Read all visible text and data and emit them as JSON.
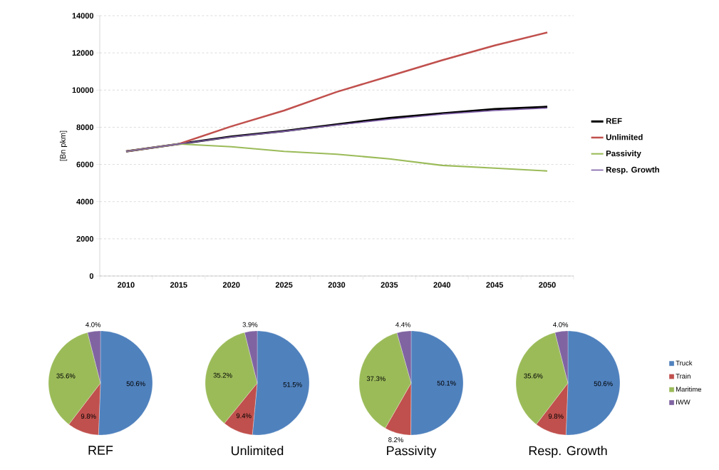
{
  "chart_data": [
    {
      "type": "line",
      "ylabel": "[Bn pkm]",
      "categories": [
        "2010",
        "2015",
        "2020",
        "2025",
        "2030",
        "2035",
        "2040",
        "2045",
        "2050"
      ],
      "ylim": [
        0,
        14000
      ],
      "yticks": [
        0,
        2000,
        4000,
        6000,
        8000,
        10000,
        12000,
        14000
      ],
      "grid": "y",
      "legend": "right",
      "series": [
        {
          "name": "REF",
          "color": "#000000",
          "values": [
            6700,
            7100,
            7500,
            7800,
            8150,
            8500,
            8750,
            8980,
            9100
          ]
        },
        {
          "name": "Unlimited",
          "color": "#c0504d",
          "values": [
            6700,
            7100,
            8050,
            8900,
            9900,
            10750,
            11600,
            12400,
            13100
          ]
        },
        {
          "name": "Passivity",
          "color": "#9bbb59",
          "values": [
            6700,
            7100,
            6950,
            6700,
            6550,
            6300,
            5950,
            5800,
            5650
          ]
        },
        {
          "name": "Resp. Growth",
          "color": "#7f5fa8",
          "values": [
            6700,
            7100,
            7480,
            7780,
            8120,
            8430,
            8700,
            8900,
            9030
          ]
        }
      ]
    },
    {
      "type": "pie",
      "title": "REF",
      "values": [
        50.6,
        9.8,
        35.6,
        4.0
      ],
      "value_labels": [
        "50.6%",
        "9.8%",
        "35.6%",
        "4.0%"
      ],
      "colors": [
        "#4f81bd",
        "#c0504d",
        "#9bbb59",
        "#8064a2"
      ]
    },
    {
      "type": "pie",
      "title": "Unlimited",
      "values": [
        51.5,
        9.4,
        35.2,
        3.9
      ],
      "value_labels": [
        "51.5%",
        "9.4%",
        "35.2%",
        "3.9%"
      ],
      "colors": [
        "#4f81bd",
        "#c0504d",
        "#9bbb59",
        "#8064a2"
      ]
    },
    {
      "type": "pie",
      "title": "Passivity",
      "values": [
        50.1,
        8.2,
        37.3,
        4.4
      ],
      "value_labels": [
        "50.1%",
        "8.2%",
        "37.3%",
        "4.4%"
      ],
      "colors": [
        "#4f81bd",
        "#c0504d",
        "#9bbb59",
        "#8064a2"
      ]
    },
    {
      "type": "pie",
      "title": "Resp. Growth",
      "categories": [
        "Truck",
        "Train",
        "Maritime",
        "IWW"
      ],
      "values": [
        50.6,
        9.8,
        35.6,
        4.0
      ],
      "value_labels": [
        "50.6%",
        "9.8%",
        "35.6%",
        "4.0%"
      ],
      "colors": [
        "#4f81bd",
        "#c0504d",
        "#9bbb59",
        "#8064a2"
      ],
      "legend": "right"
    }
  ]
}
